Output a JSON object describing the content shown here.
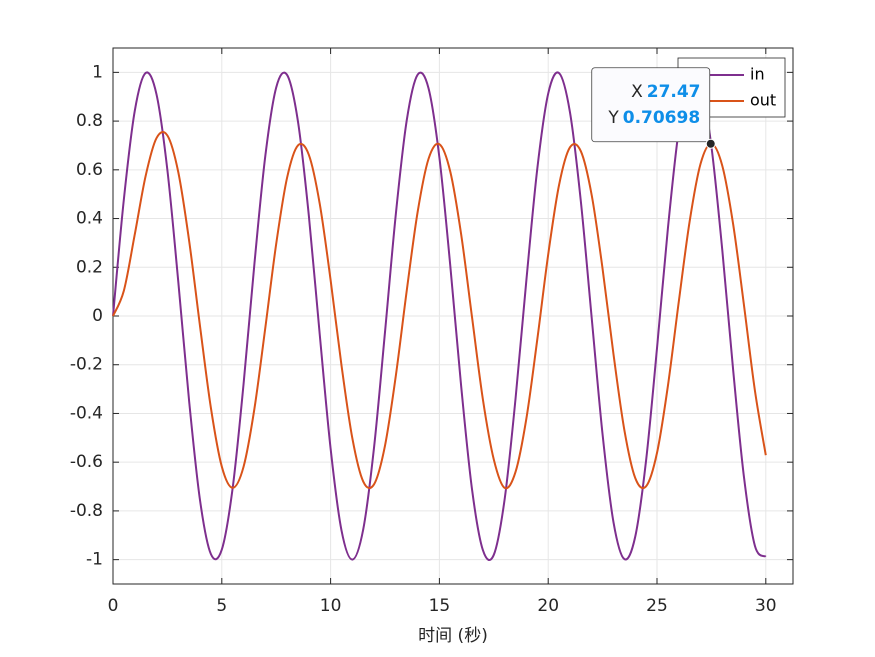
{
  "chart_data": {
    "type": "line",
    "xlabel": "时间 (秒)",
    "x": [
      0,
      0.5,
      1,
      1.5,
      2,
      2.5,
      3,
      3.5,
      4,
      4.5,
      5,
      5.5,
      6,
      6.5,
      7,
      7.5,
      8,
      8.5,
      9,
      9.5,
      10,
      10.5,
      11,
      11.5,
      12,
      12.5,
      13,
      13.5,
      14,
      14.5,
      15,
      15.5,
      16,
      16.5,
      17,
      17.5,
      18,
      18.5,
      19,
      19.5,
      20,
      20.5,
      21,
      21.5,
      22,
      22.5,
      23,
      23.5,
      24,
      24.5,
      25,
      25.5,
      26,
      26.5,
      27,
      27.5,
      28,
      28.5,
      29,
      29.5,
      30
    ],
    "series": [
      {
        "name": "in",
        "color": "#7e2f8e",
        "values": [
          0,
          0.4794,
          0.8415,
          0.9975,
          0.9093,
          0.5985,
          0.1411,
          -0.3508,
          -0.7568,
          -0.9775,
          -0.9589,
          -0.7055,
          -0.2794,
          0.2151,
          0.657,
          0.938,
          0.9894,
          0.7985,
          0.4121,
          -0.0752,
          -0.544,
          -0.8797,
          -1,
          -0.8755,
          -0.5366,
          -0.0663,
          0.4202,
          0.8038,
          0.9906,
          0.9349,
          0.6503,
          0.2065,
          -0.2879,
          -0.7122,
          -0.9614,
          -0.9802,
          -0.751,
          -0.3383,
          0.1499,
          0.6055,
          0.9129,
          0.9969,
          0.8367,
          0.4708,
          -0.0089,
          -0.4872,
          -0.8462,
          -0.9978,
          -0.9056,
          -0.5914,
          -0.1324,
          0.3586,
          0.7626,
          0.9792,
          0.9564,
          0.6963,
          0.2709,
          -0.2222,
          -0.6636,
          -0.9436,
          -0.988
        ]
      },
      {
        "name": "out",
        "color": "#d95319",
        "values": [
          0,
          0.1042,
          0.3346,
          0.575,
          0.7304,
          0.7409,
          0.5905,
          0.308,
          -0.0425,
          -0.3778,
          -0.618,
          -0.7051,
          -0.6186,
          -0.38,
          -0.048,
          0.296,
          0.5676,
          0.7003,
          0.6616,
          0.461,
          0.1476,
          -0.2021,
          -0.5022,
          -0.6794,
          -0.6903,
          -0.5321,
          -0.2436,
          0.1045,
          0.427,
          0.6449,
          0.705,
          0.5925,
          0.3349,
          -0.0052,
          -0.3431,
          -0.589,
          -0.7057,
          -0.6397,
          -0.4194,
          -0.0952,
          0.2524,
          0.5382,
          0.6922,
          0.6765,
          0.4956,
          0.1931,
          -0.1567,
          -0.468,
          -0.6649,
          -0.6989,
          -0.5618,
          -0.2875,
          0.0579,
          0.3881,
          0.6243,
          0.7071,
          0.6168,
          0.3764,
          0.0423,
          -0.3062,
          -0.5712
        ]
      }
    ],
    "xlim": [
      0,
      31.25
    ],
    "xticks": [
      0,
      5,
      10,
      15,
      20,
      25,
      30
    ],
    "ylim": [
      -1.1,
      1.1
    ],
    "yticks": [
      -1,
      -0.8,
      -0.6,
      -0.4,
      -0.2,
      0,
      0.2,
      0.4,
      0.6,
      0.8,
      1
    ],
    "grid": true,
    "legend": "northeast",
    "datatip": {
      "x_label": "X",
      "x": 27.47,
      "y_label": "Y",
      "y": 0.70698
    }
  }
}
